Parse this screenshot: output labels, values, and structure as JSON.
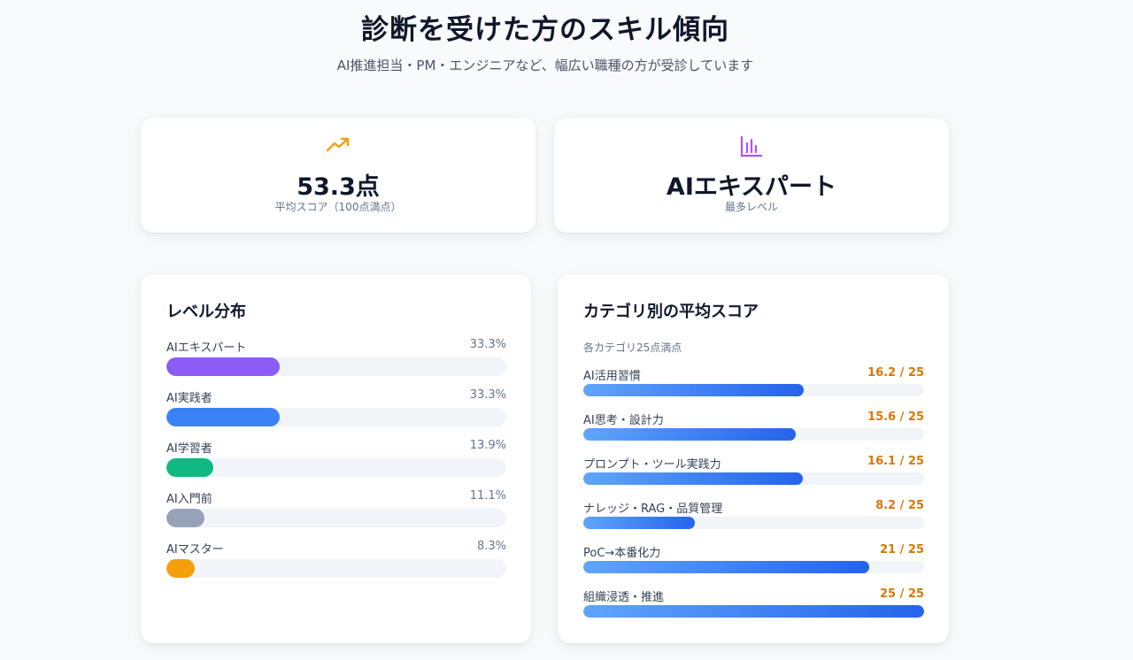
{
  "header": {
    "title": "診断を受けた方のスキル傾向",
    "subtitle": "AI推進担当・PM・エンジニアなど、幅広い職種の方が受診しています"
  },
  "stats": [
    {
      "icon": "trending-up-icon",
      "value": "53.3点",
      "label": "平均スコア（100点満点）",
      "color": "#f59e0b"
    },
    {
      "icon": "bar-chart-icon",
      "value": "AIエキスパート",
      "label": "最多レベル",
      "color": "#a855f7"
    }
  ],
  "level_distribution": {
    "title": "レベル分布",
    "items": [
      {
        "label": "AIエキスパート",
        "percent_text": "33.3%",
        "percent": 33.3,
        "color": "#8b5cf6"
      },
      {
        "label": "AI実践者",
        "percent_text": "33.3%",
        "percent": 33.3,
        "color": "#3b82f6"
      },
      {
        "label": "AI学習者",
        "percent_text": "13.9%",
        "percent": 13.9,
        "color": "#10b981"
      },
      {
        "label": "AI入門前",
        "percent_text": "11.1%",
        "percent": 11.1,
        "color": "#94a3b8"
      },
      {
        "label": "AIマスター",
        "percent_text": "8.3%",
        "percent": 8.3,
        "color": "#f59e0b"
      }
    ]
  },
  "category_scores": {
    "title": "カテゴリ別の平均スコア",
    "note": "各カテゴリ25点満点",
    "max": 25,
    "items": [
      {
        "label": "AI活用習慣",
        "score_text": "16.2 / 25",
        "score": 16.2
      },
      {
        "label": "AI思考・設計力",
        "score_text": "15.6 / 25",
        "score": 15.6
      },
      {
        "label": "プロンプト・ツール実践力",
        "score_text": "16.1 / 25",
        "score": 16.1
      },
      {
        "label": "ナレッジ・RAG・品質管理",
        "score_text": "8.2 / 25",
        "score": 8.2
      },
      {
        "label": "PoC→本番化力",
        "score_text": "21 / 25",
        "score": 21
      },
      {
        "label": "組織浸透・推進",
        "score_text": "25 / 25",
        "score": 25
      }
    ]
  }
}
